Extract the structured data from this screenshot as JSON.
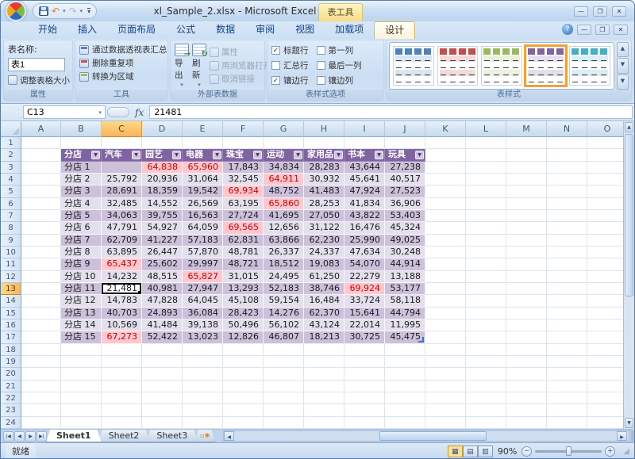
{
  "window": {
    "title": "xl_Sample_2.xlsx - Microsoft Excel",
    "context_tool_label": "表工具"
  },
  "ribbon": {
    "tabs": [
      {
        "label": "开始",
        "active": false
      },
      {
        "label": "插入",
        "active": false
      },
      {
        "label": "页面布局",
        "active": false
      },
      {
        "label": "公式",
        "active": false
      },
      {
        "label": "数据",
        "active": false
      },
      {
        "label": "审阅",
        "active": false
      },
      {
        "label": "视图",
        "active": false
      },
      {
        "label": "加载项",
        "active": false
      },
      {
        "label": "设计",
        "active": true
      }
    ],
    "properties_group": {
      "label": "属性",
      "table_name_label": "表名称:",
      "table_name_value": "表1",
      "resize_button": "调整表格大小"
    },
    "tools_group": {
      "label": "工具",
      "items": [
        {
          "label": "通过数据透视表汇总",
          "icon": "pivot-table-icon"
        },
        {
          "label": "删除重复项",
          "icon": "remove-duplicates-icon"
        },
        {
          "label": "转换为区域",
          "icon": "convert-to-range-icon"
        }
      ]
    },
    "external_group": {
      "label": "外部表数据",
      "export_button": "导出",
      "refresh_button": "刷新",
      "items": [
        {
          "label": "属性",
          "icon": "properties-icon",
          "disabled": true
        },
        {
          "label": "用浏览器打开",
          "icon": "browser-icon",
          "disabled": true
        },
        {
          "label": "取消链接",
          "icon": "unlink-icon",
          "disabled": true
        }
      ]
    },
    "style_options_group": {
      "label": "表样式选项",
      "checkboxes": [
        {
          "label": "标题行",
          "checked": true
        },
        {
          "label": "汇总行",
          "checked": false
        },
        {
          "label": "镶边行",
          "checked": true
        },
        {
          "label": "第一列",
          "checked": false
        },
        {
          "label": "最后一列",
          "checked": false
        },
        {
          "label": "镶边列",
          "checked": false
        }
      ]
    },
    "styles_group": {
      "label": "表样式",
      "swatches": [
        {
          "name": "blue",
          "color": "#4F81BD",
          "tint": "#D9E5F1",
          "selected": false
        },
        {
          "name": "red",
          "color": "#C0504D",
          "tint": "#F2DCDB",
          "selected": false
        },
        {
          "name": "green",
          "color": "#9BBB59",
          "tint": "#EBF1DE",
          "selected": false
        },
        {
          "name": "purple",
          "color": "#8064A2",
          "tint": "#E4DFEC",
          "selected": true
        },
        {
          "name": "teal",
          "color": "#4BACC6",
          "tint": "#DBEEF3",
          "selected": false
        }
      ]
    }
  },
  "formula_bar": {
    "name_box": "C13",
    "formula_value": "21481"
  },
  "grid": {
    "columns": [
      "A",
      "B",
      "C",
      "D",
      "E",
      "F",
      "G",
      "H",
      "I",
      "J",
      "K",
      "L",
      "M",
      "N",
      "O"
    ],
    "selected_column": "C",
    "selected_row": 13,
    "visible_rows": 24,
    "selected_cell": {
      "address": "C13",
      "value": "21,481"
    },
    "table": {
      "headers": [
        "分店",
        "汽车",
        "园艺",
        "电器",
        "珠宝",
        "运动",
        "家用品",
        "书本",
        "玩具"
      ],
      "rows": [
        {
          "label": "分店 1",
          "values": [
            "",
            "64,838",
            "65,960",
            "17,843",
            "34,834",
            "28,283",
            "43,644",
            "27,238"
          ],
          "highlighted": [
            1,
            2
          ]
        },
        {
          "label": "分店 2",
          "values": [
            "25,792",
            "20,936",
            "31,064",
            "32,545",
            "64,911",
            "30,932",
            "45,641",
            "40,517"
          ],
          "highlighted": [
            4
          ]
        },
        {
          "label": "分店 3",
          "values": [
            "28,691",
            "18,359",
            "19,542",
            "69,934",
            "48,752",
            "41,483",
            "47,924",
            "27,523"
          ],
          "highlighted": [
            3
          ]
        },
        {
          "label": "分店 4",
          "values": [
            "32,485",
            "14,552",
            "26,569",
            "63,195",
            "65,860",
            "28,253",
            "41,834",
            "36,906"
          ],
          "highlighted": [
            4
          ]
        },
        {
          "label": "分店 5",
          "values": [
            "34,063",
            "39,755",
            "16,563",
            "27,724",
            "41,695",
            "27,050",
            "43,822",
            "53,403"
          ],
          "highlighted": []
        },
        {
          "label": "分店 6",
          "values": [
            "47,791",
            "54,927",
            "64,059",
            "69,565",
            "12,656",
            "31,122",
            "16,476",
            "45,324"
          ],
          "highlighted": [
            3
          ]
        },
        {
          "label": "分店 7",
          "values": [
            "62,709",
            "41,227",
            "57,183",
            "62,831",
            "63,866",
            "62,230",
            "25,990",
            "49,025"
          ],
          "highlighted": []
        },
        {
          "label": "分店 8",
          "values": [
            "63,895",
            "26,447",
            "57,870",
            "48,781",
            "26,337",
            "24,337",
            "47,634",
            "30,248"
          ],
          "highlighted": []
        },
        {
          "label": "分店 9",
          "values": [
            "65,437",
            "25,602",
            "29,997",
            "48,721",
            "18,512",
            "19,083",
            "54,070",
            "44,914"
          ],
          "highlighted": [
            0
          ]
        },
        {
          "label": "分店 10",
          "values": [
            "14,232",
            "48,515",
            "65,827",
            "31,015",
            "24,495",
            "61,250",
            "22,279",
            "13,188"
          ],
          "highlighted": [
            2
          ]
        },
        {
          "label": "分店 11",
          "values": [
            "21,481",
            "40,981",
            "27,947",
            "13,293",
            "52,183",
            "38,746",
            "69,924",
            "53,177"
          ],
          "highlighted": [
            6
          ]
        },
        {
          "label": "分店 12",
          "values": [
            "14,783",
            "47,828",
            "64,045",
            "45,108",
            "59,154",
            "16,484",
            "33,724",
            "58,118"
          ],
          "highlighted": []
        },
        {
          "label": "分店 13",
          "values": [
            "40,703",
            "24,893",
            "36,084",
            "28,423",
            "14,276",
            "62,370",
            "15,641",
            "44,794"
          ],
          "highlighted": []
        },
        {
          "label": "分店 14",
          "values": [
            "10,569",
            "41,484",
            "39,138",
            "50,496",
            "56,102",
            "43,124",
            "22,014",
            "11,995"
          ],
          "highlighted": []
        },
        {
          "label": "分店 15",
          "values": [
            "67,273",
            "52,422",
            "13,023",
            "12,826",
            "46,807",
            "18,213",
            "30,725",
            "45,475"
          ],
          "highlighted": [
            0
          ]
        }
      ]
    }
  },
  "sheet_bar": {
    "tabs": [
      {
        "label": "Sheet1",
        "active": true
      },
      {
        "label": "Sheet2",
        "active": false
      },
      {
        "label": "Sheet3",
        "active": false
      }
    ]
  },
  "status_bar": {
    "ready_text": "就绪",
    "zoom_level": "90%"
  },
  "colors": {
    "table_header": "#8064A2",
    "band_dark": "#CCC0DA",
    "band_light": "#E4DFEC",
    "highlight_bg": "#FFC7CE",
    "highlight_text": "#D10000"
  }
}
